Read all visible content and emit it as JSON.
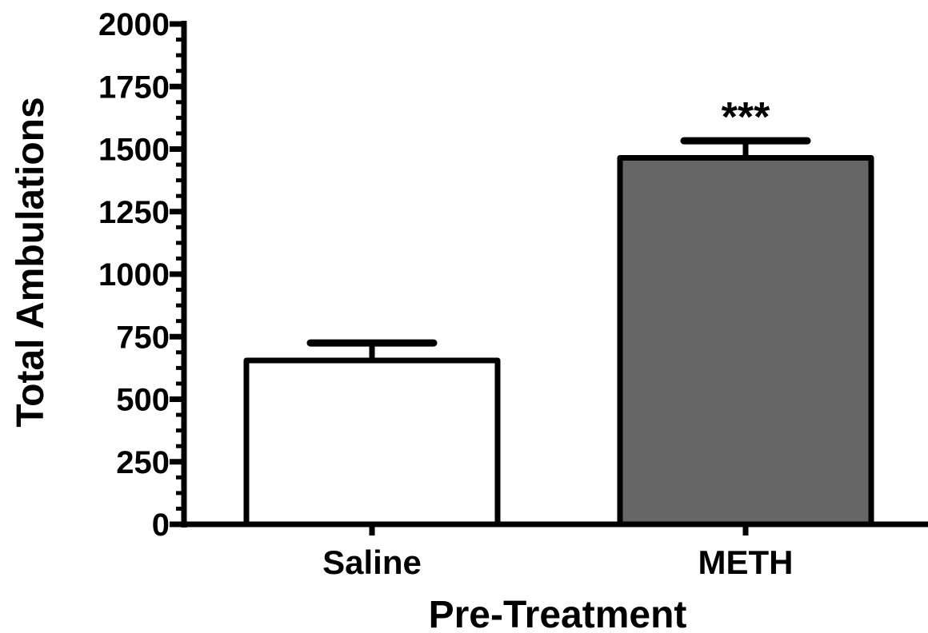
{
  "chart_data": {
    "type": "bar",
    "categories": [
      "Saline",
      "METH"
    ],
    "values": [
      655,
      1465
    ],
    "errors": [
      70,
      68
    ],
    "bar_colors": [
      "#ffffff",
      "#666666"
    ],
    "edge_color": "#000000",
    "annotations": [
      "",
      "***"
    ],
    "xlabel": "Pre-Treatment",
    "ylabel": "Total Ambulations",
    "ylim": [
      0,
      2000
    ],
    "yticks": [
      0,
      250,
      500,
      750,
      1000,
      1250,
      1500,
      1750,
      2000
    ],
    "ytick_labels": [
      "0",
      "250",
      "500",
      "750",
      "1000",
      "1250",
      "1500",
      "1750",
      "2000"
    ],
    "grid": false,
    "legend": "none"
  }
}
